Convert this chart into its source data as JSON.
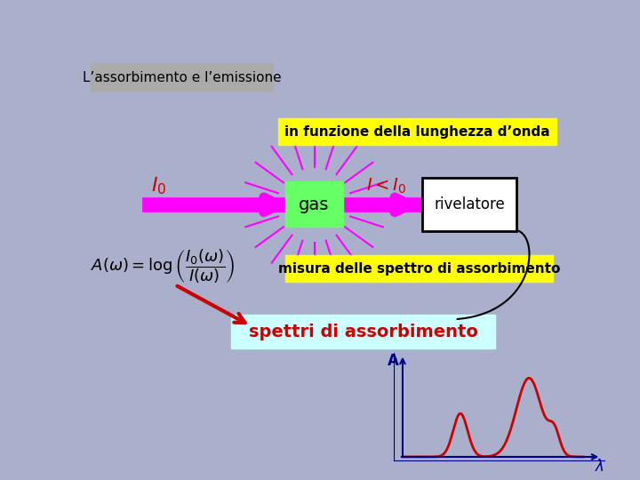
{
  "bg_color": "#aab0cc",
  "title_box_color": "#aaaaaa",
  "title_text": "L’assorbimento e l’emissione",
  "title_text_color": "#000000",
  "yellow_box1_text": "in funzione della lunghezza d’onda",
  "yellow_box2_text": "misura delle spettro di assorbimento",
  "yellow_box_color": "#ffff00",
  "yellow_box_text_color": "#000000",
  "gas_box_color": "#66ff66",
  "gas_text": "gas",
  "gas_text_color": "#000000",
  "rivelatore_box_color": "#ffffff",
  "rivelatore_box_edge": "#000000",
  "rivelatore_text": "rivelatore",
  "rivelatore_text_color": "#000000",
  "arrow_color": "#ff00ff",
  "I0_text_color": "#cc0000",
  "I_lt_I0_text_color": "#cc0000",
  "cyan_box_color": "#ccffff",
  "spettri_text": "spettri di assorbimento",
  "spettri_text_color": "#cc0000",
  "formula_text_color": "#000000",
  "red_arrow_color": "#cc0000",
  "plot_line_color": "#cc0000",
  "plot_axis_color": "#00008b",
  "plot_label_color": "#00008b"
}
